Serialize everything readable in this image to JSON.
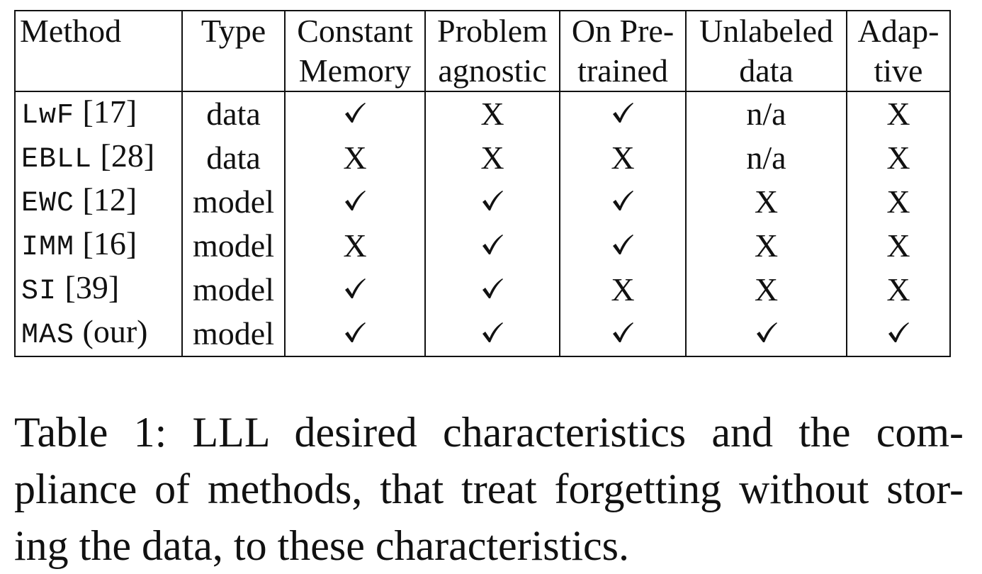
{
  "table": {
    "headers": [
      [
        "Method",
        ""
      ],
      [
        "Type",
        ""
      ],
      [
        "Constant",
        "Memory"
      ],
      [
        "Problem",
        "agnostic"
      ],
      [
        "On Pre-",
        "trained"
      ],
      [
        "Unlabeled",
        "data"
      ],
      [
        "Adap-",
        "tive"
      ]
    ],
    "rows": [
      {
        "method": "LwF",
        "cite": "[17]",
        "type": "data",
        "cells": [
          "check",
          "X",
          "check",
          "n/a",
          "X"
        ]
      },
      {
        "method": "EBLL",
        "cite": "[28]",
        "type": "data",
        "cells": [
          "X",
          "X",
          "X",
          "n/a",
          "X"
        ]
      },
      {
        "method": "EWC",
        "cite": "[12]",
        "type": "model",
        "cells": [
          "check",
          "check",
          "check",
          "X",
          "X"
        ]
      },
      {
        "method": "IMM",
        "cite": "[16]",
        "type": "model",
        "cells": [
          "X",
          "check",
          "check",
          "X",
          "X"
        ]
      },
      {
        "method": "SI",
        "cite": "[39]",
        "type": "model",
        "cells": [
          "check",
          "check",
          "X",
          "X",
          "X"
        ]
      },
      {
        "method": "MAS",
        "cite": "(our)",
        "type": "model",
        "cells": [
          "check",
          "check",
          "check",
          "check",
          "check"
        ]
      }
    ]
  },
  "caption": {
    "label": "Table 1:",
    "text": "LLL desired characteristics and the com- pliance of methods, that treat forgetting without stor- ing the data, to these characteristics."
  }
}
